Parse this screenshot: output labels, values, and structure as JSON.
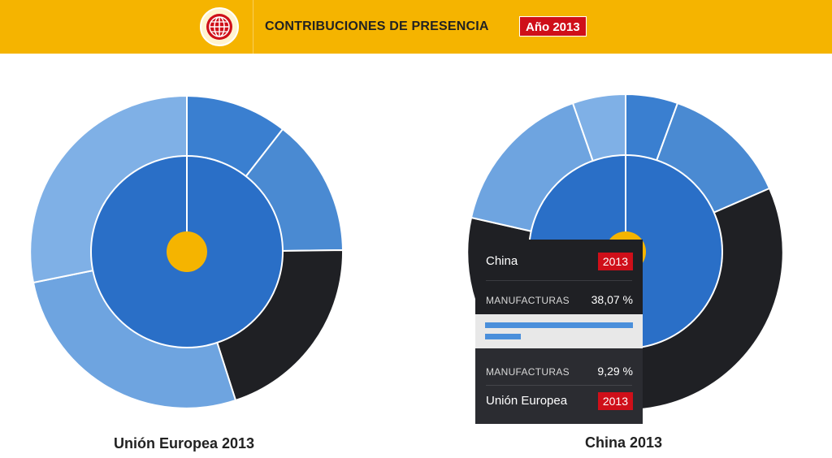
{
  "header": {
    "title": "CONTRIBUCIONES DE PRESENCIA",
    "year_badge": "Año 2013",
    "logo_icon": "globe-icon",
    "background_color": "#f5b400",
    "badge_color": "#cf0f19"
  },
  "charts": [
    {
      "caption": "Unión Europea 2013"
    },
    {
      "caption": "China 2013"
    }
  ],
  "tooltip": {
    "top_name": "China",
    "top_year": "2013",
    "top_category": "MANUFACTURAS",
    "top_value": "38,07 %",
    "top_fraction": 0.3807,
    "bottom_category": "MANUFACTURAS",
    "bottom_value": "9,29 %",
    "bottom_fraction": 0.0929,
    "bottom_name": "Unión Europea",
    "bottom_year": "2013"
  },
  "colors": {
    "inner": "#2a6fc7",
    "slice_a": "#3a7fd0",
    "slice_b": "#4a8ad2",
    "slice_c": "#1f2024",
    "slice_d": "#6ea4e0",
    "slice_e": "#7fb0e6",
    "center": "#f5b400"
  }
}
